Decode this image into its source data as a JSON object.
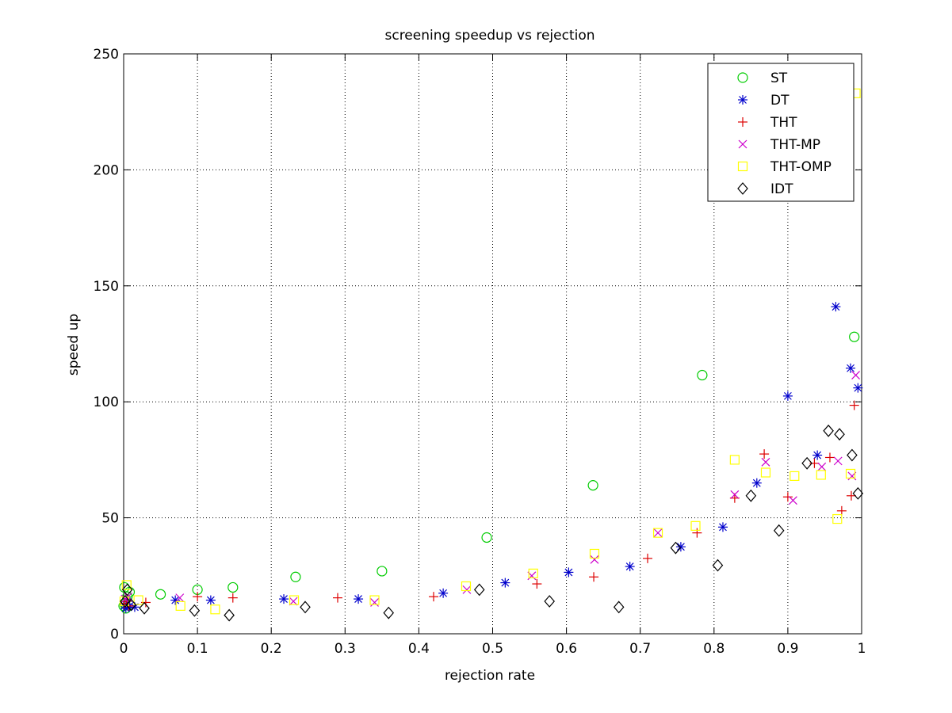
{
  "chart_data": {
    "type": "scatter",
    "title": "screening speedup vs rejection",
    "xlabel": "rejection rate",
    "ylabel": "speed up",
    "xlim": [
      0,
      1
    ],
    "ylim": [
      0,
      250
    ],
    "xticks": [
      "0",
      "0.1",
      "0.2",
      "0.3",
      "0.4",
      "0.5",
      "0.6",
      "0.7",
      "0.8",
      "0.9",
      "1"
    ],
    "yticks": [
      "0",
      "50",
      "100",
      "150",
      "200",
      "250"
    ],
    "grid": true,
    "legend_position": "top-right",
    "series": [
      {
        "name": "ST",
        "marker": "circle",
        "color": "#00cc00",
        "points": [
          [
            0.0,
            12
          ],
          [
            0.001,
            20
          ],
          [
            0.002,
            13
          ],
          [
            0.003,
            11
          ],
          [
            0.005,
            16
          ],
          [
            0.008,
            18
          ],
          [
            0.05,
            17
          ],
          [
            0.1,
            19
          ],
          [
            0.148,
            20
          ],
          [
            0.233,
            24.5
          ],
          [
            0.35,
            27
          ],
          [
            0.492,
            41.5
          ],
          [
            0.636,
            64
          ],
          [
            0.784,
            111.5
          ],
          [
            0.99,
            128
          ]
        ]
      },
      {
        "name": "DT",
        "marker": "asterisk",
        "color": "#0000cc",
        "points": [
          [
            0.001,
            12
          ],
          [
            0.003,
            11
          ],
          [
            0.005,
            14
          ],
          [
            0.008,
            12
          ],
          [
            0.015,
            11.5
          ],
          [
            0.07,
            14.5
          ],
          [
            0.118,
            14.5
          ],
          [
            0.217,
            15
          ],
          [
            0.318,
            15
          ],
          [
            0.433,
            17.5
          ],
          [
            0.517,
            22
          ],
          [
            0.603,
            26.5
          ],
          [
            0.686,
            29
          ],
          [
            0.755,
            37.5
          ],
          [
            0.812,
            46
          ],
          [
            0.858,
            65
          ],
          [
            0.9,
            102.5
          ],
          [
            0.94,
            77
          ],
          [
            0.965,
            141
          ],
          [
            0.985,
            114.5
          ],
          [
            0.995,
            106
          ]
        ]
      },
      {
        "name": "THT",
        "marker": "plus",
        "color": "#dd0000",
        "points": [
          [
            0.001,
            13
          ],
          [
            0.004,
            14
          ],
          [
            0.007,
            12
          ],
          [
            0.03,
            13.5
          ],
          [
            0.1,
            16
          ],
          [
            0.148,
            15.5
          ],
          [
            0.29,
            15.5
          ],
          [
            0.42,
            16
          ],
          [
            0.56,
            21.5
          ],
          [
            0.637,
            24.5
          ],
          [
            0.71,
            32.5
          ],
          [
            0.777,
            43.5
          ],
          [
            0.828,
            58.5
          ],
          [
            0.868,
            77.5
          ],
          [
            0.9,
            59
          ],
          [
            0.936,
            73.5
          ],
          [
            0.957,
            76
          ],
          [
            0.973,
            53
          ],
          [
            0.986,
            59.5
          ],
          [
            0.99,
            98.5
          ]
        ]
      },
      {
        "name": "THT-MP",
        "marker": "cross",
        "color": "#cc00cc",
        "points": [
          [
            0.002,
            15
          ],
          [
            0.006,
            16
          ],
          [
            0.076,
            15.5
          ],
          [
            0.23,
            14
          ],
          [
            0.34,
            13.5
          ],
          [
            0.465,
            19
          ],
          [
            0.553,
            25
          ],
          [
            0.638,
            32
          ],
          [
            0.724,
            43.5
          ],
          [
            0.828,
            60
          ],
          [
            0.87,
            74
          ],
          [
            0.907,
            57.5
          ],
          [
            0.946,
            72
          ],
          [
            0.968,
            74.5
          ],
          [
            0.987,
            68
          ],
          [
            0.992,
            111.5
          ]
        ]
      },
      {
        "name": "THT-OMP",
        "marker": "square",
        "color": "#ffff00",
        "points": [
          [
            0.001,
            14
          ],
          [
            0.004,
            21
          ],
          [
            0.02,
            14.5
          ],
          [
            0.077,
            12
          ],
          [
            0.124,
            10.5
          ],
          [
            0.231,
            14.5
          ],
          [
            0.34,
            14.5
          ],
          [
            0.464,
            20.5
          ],
          [
            0.555,
            26
          ],
          [
            0.638,
            34.5
          ],
          [
            0.724,
            43.5
          ],
          [
            0.775,
            46.5
          ],
          [
            0.828,
            75
          ],
          [
            0.87,
            69.5
          ],
          [
            0.909,
            68
          ],
          [
            0.945,
            68.5
          ],
          [
            0.967,
            49.5
          ],
          [
            0.985,
            69
          ],
          [
            0.992,
            233
          ]
        ]
      },
      {
        "name": "IDT",
        "marker": "diamond",
        "color": "#000000",
        "points": [
          [
            0.002,
            14
          ],
          [
            0.005,
            19
          ],
          [
            0.01,
            12.5
          ],
          [
            0.028,
            11
          ],
          [
            0.096,
            10
          ],
          [
            0.143,
            8
          ],
          [
            0.246,
            11.5
          ],
          [
            0.359,
            9
          ],
          [
            0.482,
            19
          ],
          [
            0.577,
            14
          ],
          [
            0.671,
            11.5
          ],
          [
            0.748,
            37
          ],
          [
            0.805,
            29.5
          ],
          [
            0.85,
            59.5
          ],
          [
            0.888,
            44.5
          ],
          [
            0.926,
            73.5
          ],
          [
            0.955,
            87.5
          ],
          [
            0.97,
            86
          ],
          [
            0.987,
            77
          ],
          [
            0.995,
            60.5
          ]
        ]
      }
    ]
  }
}
